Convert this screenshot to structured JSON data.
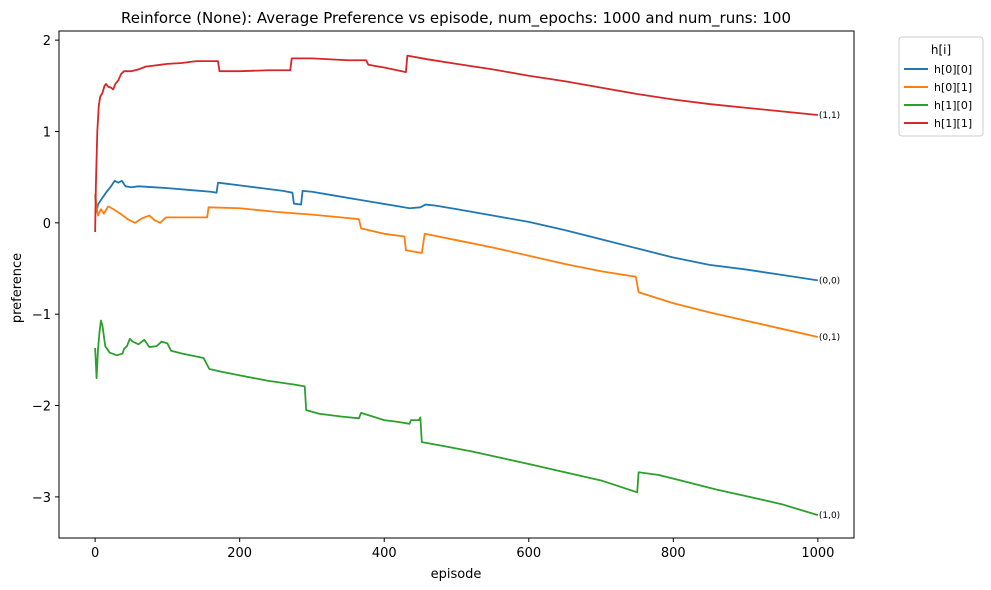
{
  "chart_data": {
    "type": "line",
    "title": "Reinforce (None): Average Preference vs episode, num_epochs: 1000 and num_runs: 100",
    "xlabel": "episode",
    "ylabel": "preference",
    "xlim": [
      -50,
      1050
    ],
    "ylim": [
      -3.45,
      2.1
    ],
    "xticks": [
      0,
      200,
      400,
      600,
      800,
      1000
    ],
    "yticks": [
      -3,
      -2,
      -1,
      0,
      1,
      2
    ],
    "grid": false,
    "legend": {
      "title": "h[i]",
      "placement": "outside-top-right"
    },
    "series": [
      {
        "name": "h[0][0]",
        "color": "#1f77b4",
        "end_label": "(0,0)",
        "points": [
          [
            0,
            0.3
          ],
          [
            2,
            0.12
          ],
          [
            4,
            0.2
          ],
          [
            8,
            0.25
          ],
          [
            15,
            0.33
          ],
          [
            22,
            0.4
          ],
          [
            27,
            0.46
          ],
          [
            32,
            0.44
          ],
          [
            37,
            0.46
          ],
          [
            42,
            0.4
          ],
          [
            50,
            0.39
          ],
          [
            60,
            0.4
          ],
          [
            80,
            0.39
          ],
          [
            100,
            0.38
          ],
          [
            130,
            0.36
          ],
          [
            160,
            0.34
          ],
          [
            168,
            0.33
          ],
          [
            170,
            0.44
          ],
          [
            180,
            0.43
          ],
          [
            200,
            0.41
          ],
          [
            230,
            0.38
          ],
          [
            260,
            0.35
          ],
          [
            273,
            0.33
          ],
          [
            275,
            0.21
          ],
          [
            285,
            0.2
          ],
          [
            287,
            0.35
          ],
          [
            300,
            0.34
          ],
          [
            330,
            0.3
          ],
          [
            360,
            0.26
          ],
          [
            390,
            0.22
          ],
          [
            420,
            0.18
          ],
          [
            435,
            0.16
          ],
          [
            450,
            0.17
          ],
          [
            457,
            0.2
          ],
          [
            470,
            0.19
          ],
          [
            500,
            0.15
          ],
          [
            550,
            0.08
          ],
          [
            600,
            0.01
          ],
          [
            650,
            -0.08
          ],
          [
            700,
            -0.18
          ],
          [
            750,
            -0.28
          ],
          [
            800,
            -0.38
          ],
          [
            850,
            -0.46
          ],
          [
            900,
            -0.51
          ],
          [
            950,
            -0.57
          ],
          [
            1000,
            -0.63
          ]
        ]
      },
      {
        "name": "h[0][1]",
        "color": "#ff7f0e",
        "end_label": "(0,1)",
        "points": [
          [
            0,
            0.32
          ],
          [
            2,
            0.18
          ],
          [
            4,
            0.08
          ],
          [
            8,
            0.15
          ],
          [
            12,
            0.1
          ],
          [
            18,
            0.18
          ],
          [
            25,
            0.15
          ],
          [
            35,
            0.1
          ],
          [
            45,
            0.04
          ],
          [
            55,
            0.0
          ],
          [
            65,
            0.05
          ],
          [
            75,
            0.08
          ],
          [
            82,
            0.03
          ],
          [
            90,
            0.0
          ],
          [
            98,
            0.06
          ],
          [
            110,
            0.06
          ],
          [
            140,
            0.06
          ],
          [
            155,
            0.06
          ],
          [
            157,
            0.17
          ],
          [
            200,
            0.16
          ],
          [
            250,
            0.12
          ],
          [
            300,
            0.09
          ],
          [
            340,
            0.06
          ],
          [
            365,
            0.04
          ],
          [
            368,
            -0.06
          ],
          [
            400,
            -0.12
          ],
          [
            428,
            -0.15
          ],
          [
            430,
            -0.3
          ],
          [
            452,
            -0.33
          ],
          [
            456,
            -0.12
          ],
          [
            475,
            -0.15
          ],
          [
            500,
            -0.19
          ],
          [
            550,
            -0.27
          ],
          [
            600,
            -0.36
          ],
          [
            650,
            -0.45
          ],
          [
            700,
            -0.53
          ],
          [
            748,
            -0.59
          ],
          [
            752,
            -0.76
          ],
          [
            800,
            -0.88
          ],
          [
            850,
            -0.98
          ],
          [
            900,
            -1.07
          ],
          [
            950,
            -1.16
          ],
          [
            1000,
            -1.25
          ]
        ]
      },
      {
        "name": "h[1][0]",
        "color": "#2ca02c",
        "end_label": "(1,0)",
        "points": [
          [
            0,
            -1.37
          ],
          [
            2,
            -1.7
          ],
          [
            4,
            -1.38
          ],
          [
            6,
            -1.2
          ],
          [
            8,
            -1.07
          ],
          [
            10,
            -1.12
          ],
          [
            14,
            -1.35
          ],
          [
            20,
            -1.42
          ],
          [
            30,
            -1.45
          ],
          [
            38,
            -1.43
          ],
          [
            40,
            -1.38
          ],
          [
            44,
            -1.35
          ],
          [
            48,
            -1.27
          ],
          [
            52,
            -1.3
          ],
          [
            60,
            -1.33
          ],
          [
            68,
            -1.28
          ],
          [
            75,
            -1.36
          ],
          [
            85,
            -1.35
          ],
          [
            92,
            -1.3
          ],
          [
            100,
            -1.32
          ],
          [
            105,
            -1.4
          ],
          [
            120,
            -1.43
          ],
          [
            150,
            -1.48
          ],
          [
            158,
            -1.6
          ],
          [
            175,
            -1.63
          ],
          [
            200,
            -1.67
          ],
          [
            240,
            -1.73
          ],
          [
            275,
            -1.77
          ],
          [
            290,
            -1.79
          ],
          [
            292,
            -2.05
          ],
          [
            310,
            -2.09
          ],
          [
            340,
            -2.12
          ],
          [
            365,
            -2.14
          ],
          [
            368,
            -2.08
          ],
          [
            400,
            -2.16
          ],
          [
            420,
            -2.18
          ],
          [
            435,
            -2.2
          ],
          [
            437,
            -2.16
          ],
          [
            448,
            -2.16
          ],
          [
            450,
            -2.13
          ],
          [
            452,
            -2.4
          ],
          [
            480,
            -2.44
          ],
          [
            520,
            -2.5
          ],
          [
            560,
            -2.57
          ],
          [
            600,
            -2.64
          ],
          [
            650,
            -2.73
          ],
          [
            700,
            -2.82
          ],
          [
            750,
            -2.95
          ],
          [
            752,
            -2.73
          ],
          [
            780,
            -2.76
          ],
          [
            820,
            -2.84
          ],
          [
            860,
            -2.92
          ],
          [
            900,
            -2.99
          ],
          [
            950,
            -3.08
          ],
          [
            1000,
            -3.2
          ]
        ]
      },
      {
        "name": "h[1][1]",
        "color": "#d62728",
        "end_label": "(1,1)",
        "points": [
          [
            0,
            -0.1
          ],
          [
            1,
            0.4
          ],
          [
            2,
            0.7
          ],
          [
            3,
            1.0
          ],
          [
            5,
            1.28
          ],
          [
            7,
            1.38
          ],
          [
            10,
            1.42
          ],
          [
            13,
            1.5
          ],
          [
            15,
            1.52
          ],
          [
            18,
            1.49
          ],
          [
            22,
            1.48
          ],
          [
            25,
            1.46
          ],
          [
            28,
            1.52
          ],
          [
            32,
            1.56
          ],
          [
            36,
            1.63
          ],
          [
            40,
            1.66
          ],
          [
            50,
            1.66
          ],
          [
            60,
            1.68
          ],
          [
            70,
            1.71
          ],
          [
            80,
            1.72
          ],
          [
            90,
            1.73
          ],
          [
            100,
            1.74
          ],
          [
            120,
            1.75
          ],
          [
            140,
            1.77
          ],
          [
            155,
            1.77
          ],
          [
            170,
            1.77
          ],
          [
            172,
            1.66
          ],
          [
            200,
            1.66
          ],
          [
            240,
            1.67
          ],
          [
            270,
            1.67
          ],
          [
            272,
            1.8
          ],
          [
            300,
            1.8
          ],
          [
            350,
            1.78
          ],
          [
            375,
            1.78
          ],
          [
            378,
            1.73
          ],
          [
            400,
            1.7
          ],
          [
            430,
            1.65
          ],
          [
            432,
            1.83
          ],
          [
            460,
            1.79
          ],
          [
            500,
            1.74
          ],
          [
            550,
            1.68
          ],
          [
            600,
            1.61
          ],
          [
            650,
            1.55
          ],
          [
            700,
            1.48
          ],
          [
            750,
            1.41
          ],
          [
            800,
            1.35
          ],
          [
            850,
            1.3
          ],
          [
            900,
            1.26
          ],
          [
            950,
            1.22
          ],
          [
            1000,
            1.18
          ]
        ]
      }
    ]
  }
}
